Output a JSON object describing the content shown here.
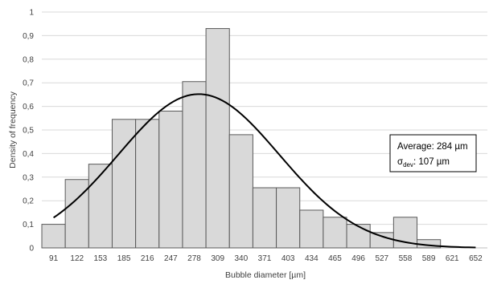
{
  "chart_data": {
    "type": "bar",
    "subtype": "histogram-with-normal-fit",
    "xlabel": "Bubble diameter [µm]",
    "ylabel": "Density of frequency",
    "categories": [
      "91",
      "122",
      "153",
      "185",
      "216",
      "247",
      "278",
      "309",
      "340",
      "371",
      "403",
      "434",
      "465",
      "496",
      "527",
      "558",
      "589",
      "621",
      "652"
    ],
    "values": [
      0.1,
      0.29,
      0.355,
      0.545,
      0.545,
      0.58,
      0.705,
      0.93,
      0.48,
      0.255,
      0.255,
      0.16,
      0.13,
      0.1,
      0.065,
      0.13,
      0.035,
      0,
      0
    ],
    "ylim": [
      0,
      1
    ],
    "yticks": [
      "0",
      "0,1",
      "0,2",
      "0,3",
      "0,4",
      "0,5",
      "0,6",
      "0,7",
      "0,8",
      "0,9",
      "1"
    ],
    "fit_curve": {
      "type": "normal",
      "mean": 284,
      "std": 107,
      "peak": 0.652,
      "x_range": [
        91,
        652
      ]
    },
    "grid": true,
    "stats_box": {
      "average_label": "Average: 284 µm",
      "sigma_symbol": "σ",
      "sigma_subscript": "dev",
      "sigma_value": ": 107 µm"
    },
    "colors": {
      "bar_fill": "#d9d9d9",
      "bar_stroke": "#595959",
      "curve": "#000000",
      "grid": "#d9d9d9"
    }
  }
}
